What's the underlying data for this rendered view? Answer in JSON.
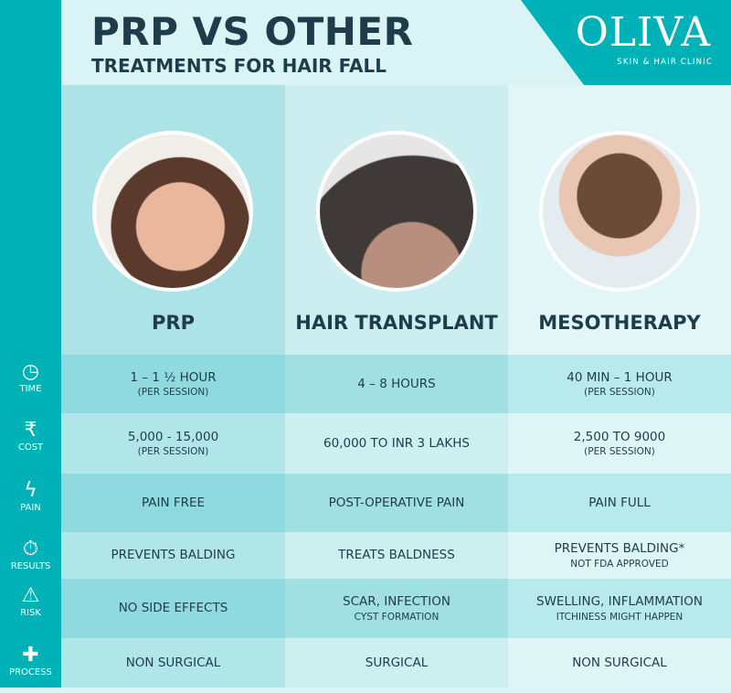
{
  "header": {
    "title_line1": "PRP VS OTHER",
    "title_line2": "TREATMENTS FOR HAIR FALL"
  },
  "logo": {
    "word": "OLIVA",
    "tm": "™",
    "subtitle": "SKIN & HAIR CLINIC"
  },
  "columns": [
    {
      "label": "PRP"
    },
    {
      "label": "HAIR TRANSPLANT"
    },
    {
      "label": "MESOTHERAPY"
    }
  ],
  "rows": [
    {
      "label": "TIME",
      "icon": "clock-icon",
      "cells": [
        [
          "1 – 1 ½ HOUR",
          "(PER SESSION)"
        ],
        [
          "4  – 8 HOURS",
          ""
        ],
        [
          "40 MIN – 1 HOUR",
          "(PER SESSION)"
        ]
      ]
    },
    {
      "label": "COST",
      "icon": "rupee-icon",
      "cells": [
        [
          "5,000 - 15,000",
          "(PER SESSION)"
        ],
        [
          "60,000 TO INR 3 LAKHS",
          ""
        ],
        [
          "2,500 TO 9000",
          "(PER SESSION)"
        ]
      ]
    },
    {
      "label": "PAIN",
      "icon": "lightning-icon",
      "cells": [
        [
          "PAIN FREE",
          ""
        ],
        [
          "POST-OPERATIVE PAIN",
          ""
        ],
        [
          "PAIN FULL",
          ""
        ]
      ]
    },
    {
      "label": "RESULTS",
      "icon": "stopwatch-icon",
      "cells": [
        [
          "PREVENTS BALDING",
          ""
        ],
        [
          "TREATS BALDNESS",
          ""
        ],
        [
          "PREVENTS BALDING*",
          "NOT FDA APPROVED"
        ]
      ]
    },
    {
      "label": "RISK",
      "icon": "warning-icon",
      "cells": [
        [
          "NO SIDE EFFECTS",
          ""
        ],
        [
          "SCAR, INFECTION",
          "CYST FORMATION"
        ],
        [
          "SWELLING,  INFLAMMATION",
          "ITCHINESS MIGHT HAPPEN"
        ]
      ]
    },
    {
      "label": "PROCESS",
      "icon": "medical-kit-icon",
      "cells": [
        [
          "NON SURGICAL",
          ""
        ],
        [
          "SURGICAL",
          ""
        ],
        [
          "NON SURGICAL",
          ""
        ]
      ]
    }
  ],
  "colors": {
    "sidebar": "#00b2b8",
    "text": "#1f3c4a",
    "header_bg": "#daf3f4"
  }
}
